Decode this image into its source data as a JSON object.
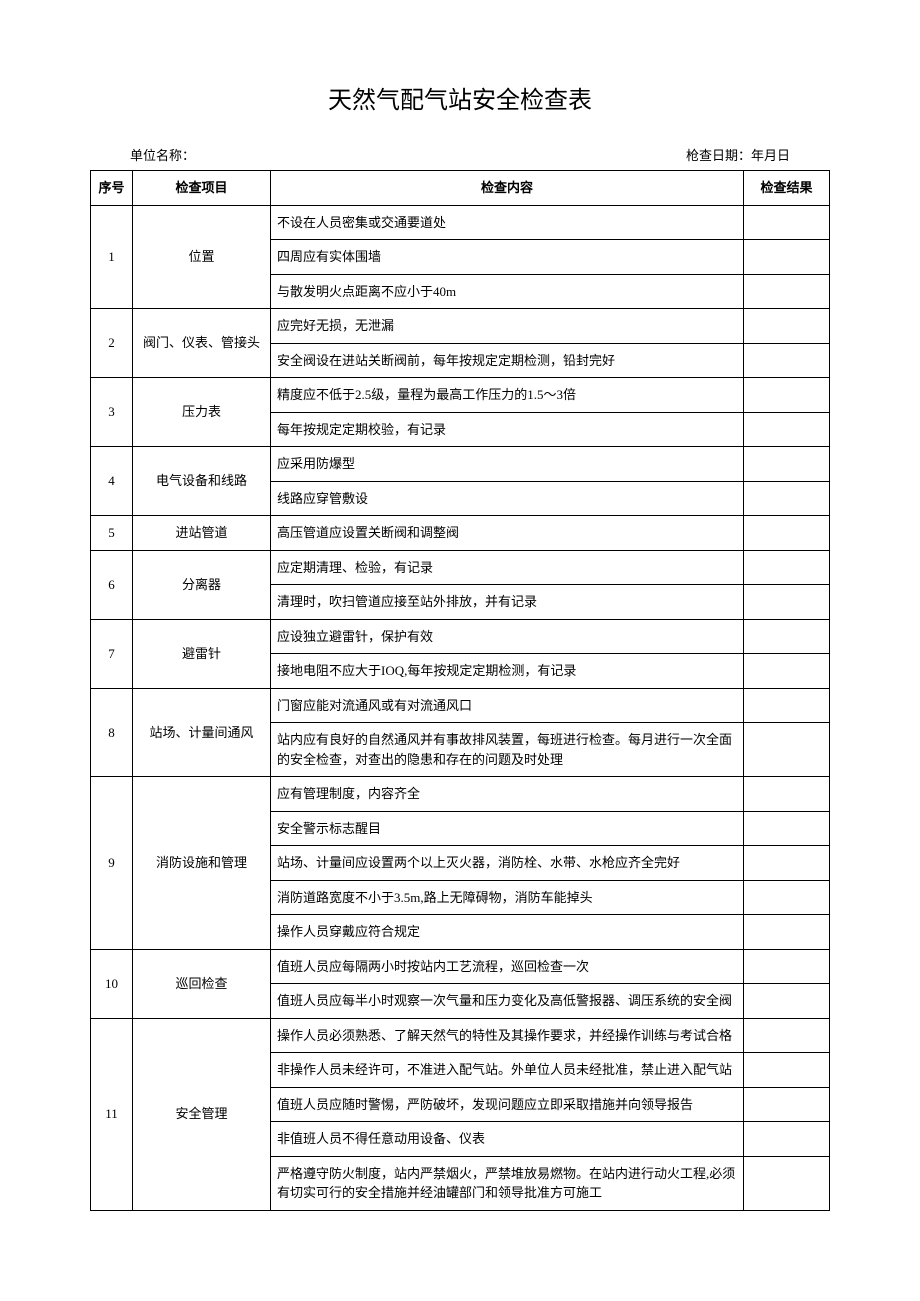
{
  "title": "天然气配气站安全检查表",
  "meta": {
    "org_label": "单位名称：",
    "date_label": "枪查日期：年月日"
  },
  "headers": {
    "seq": "序号",
    "item": "检查项目",
    "content": "检查内容",
    "result": "检查结果"
  },
  "rows": [
    {
      "seq": "1",
      "item": "位置",
      "contents": [
        "不设在人员密集或交通要道处",
        "四周应有实体围墙",
        "与散发明火点距离不应小于40m"
      ]
    },
    {
      "seq": "2",
      "item": "阀门、仪表、管接头",
      "contents": [
        "应完好无损，无泄漏",
        "安全阀设在进站关断阀前，每年按规定定期检测，铅封完好"
      ]
    },
    {
      "seq": "3",
      "item": "压力表",
      "contents": [
        "精度应不低于2.5级，量程为最高工作压力的1.5～3倍",
        "每年按规定定期校验，有记录"
      ]
    },
    {
      "seq": "4",
      "item": "电气设备和线路",
      "contents": [
        "应采用防爆型",
        "线路应穿管敷设"
      ]
    },
    {
      "seq": "5",
      "item": "进站管道",
      "contents": [
        "高压管道应设置关断阀和调整阀"
      ]
    },
    {
      "seq": "6",
      "item": "分离器",
      "contents": [
        "应定期清理、检验，有记录",
        "清理时，吹扫管道应接至站外排放，并有记录"
      ]
    },
    {
      "seq": "7",
      "item": "避雷针",
      "contents": [
        "应设独立避雷针，保护有效",
        "接地电阻不应大于IOQ,每年按规定定期检测，有记录"
      ]
    },
    {
      "seq": "8",
      "item": "站场、计量间通风",
      "contents": [
        "门窗应能对流通风或有对流通风口",
        "站内应有良好的自然通风并有事故排风装置，每班进行检查。每月进行一次全面的安全检查，对查出的隐患和存在的问题及时处理"
      ]
    },
    {
      "seq": "9",
      "item": "消防设施和管理",
      "contents": [
        "应有管理制度，内容齐全",
        "安全警示标志醒目",
        "站场、计量间应设置两个以上灭火器，消防栓、水带、水枪应齐全完好",
        "消防道路宽度不小于3.5m,路上无障碍物，消防车能掉头",
        "操作人员穿戴应符合规定"
      ]
    },
    {
      "seq": "10",
      "item": "巡回检查",
      "contents": [
        "值班人员应每隔两小时按站内工艺流程，巡回检查一次",
        "值班人员应每半小时观察一次气量和压力变化及高低警报器、调压系统的安全阀"
      ]
    },
    {
      "seq": "11",
      "item": "安全管理",
      "contents": [
        "操作人员必须熟悉、了解天然气的特性及其操作要求，并经操作训练与考试合格",
        "非操作人员未经许可，不准进入配气站。外单位人员未经批准，禁止进入配气站",
        "值班人员应随时警惕，严防破坏，发现问题应立即采取措施并向领导报告",
        "非值班人员不得任意动用设备、仪表",
        "严格遵守防火制度，站内严禁烟火，严禁堆放易燃物。在站内进行动火工程,必须有切实可行的安全措施并经油罐部门和领导批准方可施工"
      ]
    }
  ]
}
